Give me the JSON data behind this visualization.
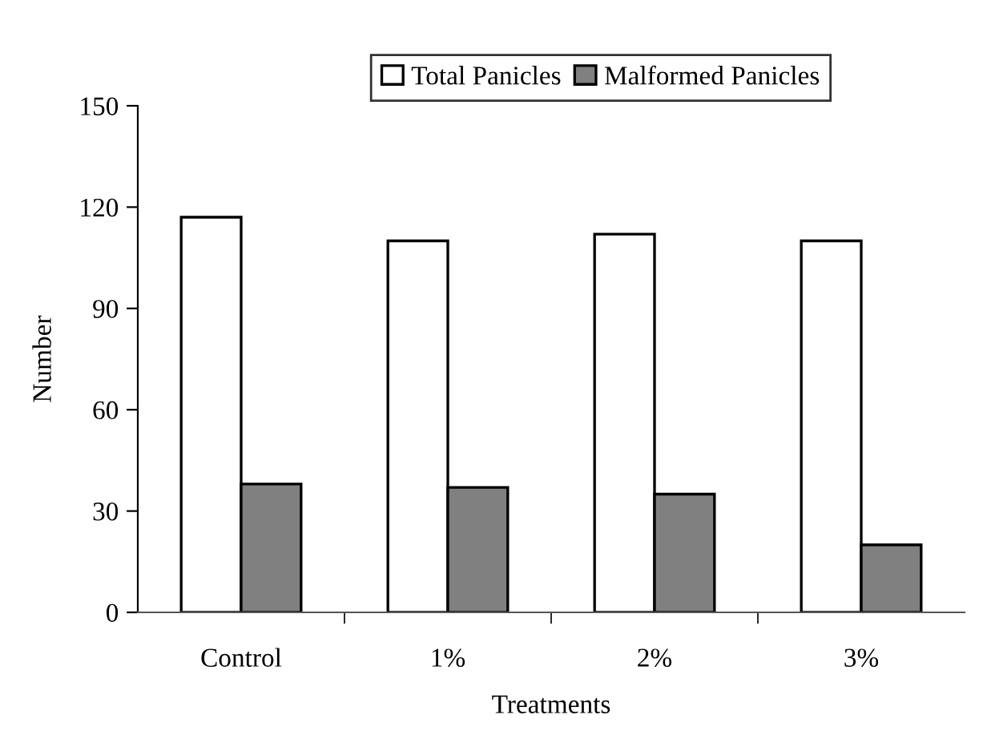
{
  "chart_data": {
    "type": "bar",
    "xlabel": "Treatments",
    "ylabel": "Number",
    "categories": [
      "Control",
      "1%",
      "2%",
      "3%"
    ],
    "series": [
      {
        "name": "Total Panicles",
        "color": "#ffffff",
        "values": [
          117,
          110,
          112,
          110
        ]
      },
      {
        "name": "Malformed Panicles",
        "color": "#808080",
        "values": [
          38,
          37,
          35,
          20
        ]
      }
    ],
    "ylim": [
      0,
      150
    ],
    "yticks": [
      0,
      30,
      60,
      90,
      120,
      150
    ],
    "grid": false,
    "legend": "top"
  }
}
